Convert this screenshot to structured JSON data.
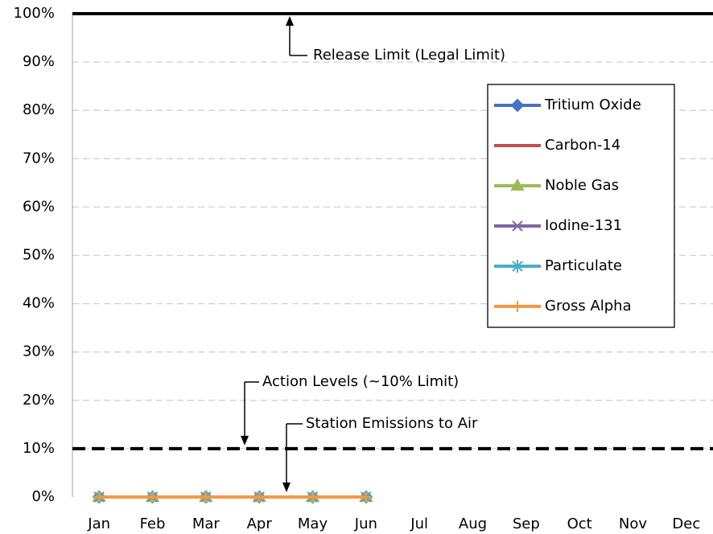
{
  "chart_data": {
    "type": "line",
    "categories": [
      "Jan",
      "Feb",
      "Mar",
      "Apr",
      "May",
      "Jun",
      "Jul",
      "Aug",
      "Sep",
      "Oct",
      "Nov",
      "Dec"
    ],
    "series": [
      {
        "name": "Tritium Oxide",
        "color": "#4472c4",
        "marker": "diamond",
        "values": [
          0,
          0,
          0,
          0,
          0,
          0,
          null,
          null,
          null,
          null,
          null,
          null
        ]
      },
      {
        "name": "Carbon-14",
        "color": "#c0504d",
        "marker": "dash",
        "values": [
          0,
          0,
          0,
          0,
          0,
          0,
          null,
          null,
          null,
          null,
          null,
          null
        ]
      },
      {
        "name": "Noble Gas",
        "color": "#9bbb59",
        "marker": "triangle",
        "values": [
          0,
          0,
          0,
          0,
          0,
          0,
          null,
          null,
          null,
          null,
          null,
          null
        ]
      },
      {
        "name": "Iodine-131",
        "color": "#8064a2",
        "marker": "x",
        "values": [
          0,
          0,
          0,
          0,
          0,
          0,
          null,
          null,
          null,
          null,
          null,
          null
        ]
      },
      {
        "name": "Particulate",
        "color": "#4bacc6",
        "marker": "asterisk",
        "values": [
          0,
          0,
          0,
          0,
          0,
          0,
          null,
          null,
          null,
          null,
          null,
          null
        ]
      },
      {
        "name": "Gross Alpha",
        "color": "#f79646",
        "marker": "plus",
        "values": [
          0,
          0,
          0,
          0,
          0,
          0,
          null,
          null,
          null,
          null,
          null,
          null
        ]
      }
    ],
    "ylim": [
      0,
      100
    ],
    "yticks": [
      {
        "value": 0,
        "label": "0%"
      },
      {
        "value": 10,
        "label": "10%"
      },
      {
        "value": 20,
        "label": "20%"
      },
      {
        "value": 30,
        "label": "30%"
      },
      {
        "value": 40,
        "label": "40%"
      },
      {
        "value": 50,
        "label": "50%"
      },
      {
        "value": 60,
        "label": "60%"
      },
      {
        "value": 70,
        "label": "70%"
      },
      {
        "value": 80,
        "label": "80%"
      },
      {
        "value": 90,
        "label": "90%"
      },
      {
        "value": 100,
        "label": "100%"
      }
    ],
    "grid": true,
    "reference_lines": [
      {
        "value": 100,
        "style": "solid"
      },
      {
        "value": 10,
        "style": "dashed"
      }
    ],
    "annotations": [
      "Release Limit (Legal Limit)",
      "Action Levels (~10% Limit)",
      "Station Emissions to Air"
    ],
    "legend": "upper right"
  }
}
